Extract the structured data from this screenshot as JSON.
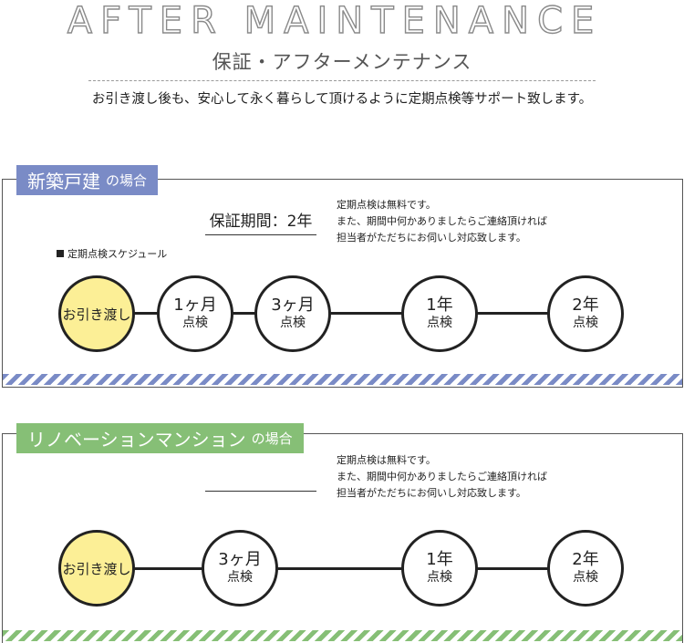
{
  "header": {
    "title_en": "AFTER MAINTENANCE",
    "title_jp": "保証・アフターメンテナンス",
    "intro": "お引き渡し後も、安心して永く暮らして頂けるように定期点検等サポート致します。"
  },
  "colors": {
    "section1_accent": "#7a8bc6",
    "section2_accent": "#86bf76",
    "handover_fill": "#fcef96"
  },
  "section1": {
    "label_main": "新築戸建",
    "label_suffix": "の場合",
    "period": "保証期間：2年",
    "note_lines": [
      "定期点検は無料です。",
      "また、期間中何かありましたらご連絡頂ければ",
      "担当者がただちにお伺いし対応致します。"
    ],
    "schedule_label": "定期点検スケジュール",
    "steps": [
      {
        "text": "お引き渡し"
      },
      {
        "top": "1ヶ月",
        "bottom": "点検"
      },
      {
        "top": "3ヶ月",
        "bottom": "点検"
      },
      {
        "top": "1年",
        "bottom": "点検"
      },
      {
        "top": "2年",
        "bottom": "点検"
      }
    ]
  },
  "section2": {
    "label_main": "リノベーションマンション",
    "label_suffix": "の場合",
    "period": "",
    "note_lines": [
      "定期点検は無料です。",
      "また、期間中何かありましたらご連絡頂ければ",
      "担当者がただちにお伺いし対応致します。"
    ],
    "steps": [
      {
        "text": "お引き渡し"
      },
      {
        "top": "3ヶ月",
        "bottom": "点検"
      },
      {
        "top": "1年",
        "bottom": "点検"
      },
      {
        "top": "2年",
        "bottom": "点検"
      }
    ]
  }
}
